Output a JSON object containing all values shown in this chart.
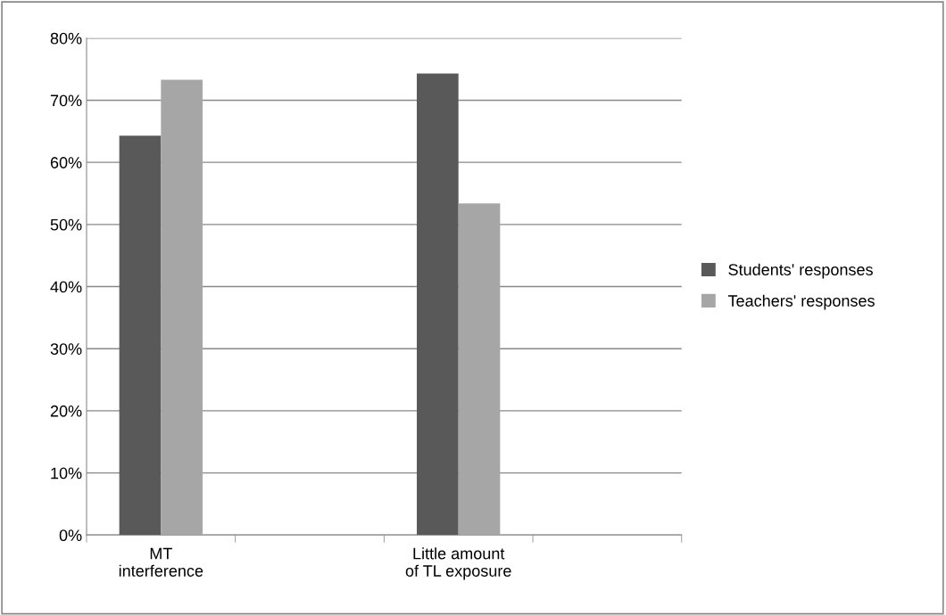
{
  "chart_data": {
    "type": "bar",
    "categories": [
      "MT\ninterference",
      null,
      "Little amount\nof TL exposure",
      null
    ],
    "series": [
      {
        "name": "Students' responses",
        "color": "#595959",
        "values": [
          64.3,
          null,
          74.3,
          null
        ]
      },
      {
        "name": "Teachers' responses",
        "color": "#a6a6a6",
        "values": [
          73.3,
          null,
          53.4,
          null
        ]
      }
    ],
    "ylim": [
      0,
      80
    ],
    "yticks": [
      {
        "value": 0,
        "label": "0%"
      },
      {
        "value": 10,
        "label": "10%"
      },
      {
        "value": 20,
        "label": "20%"
      },
      {
        "value": 30,
        "label": "30%"
      },
      {
        "value": 40,
        "label": "40%"
      },
      {
        "value": 50,
        "label": "50%"
      },
      {
        "value": 60,
        "label": "60%"
      },
      {
        "value": 70,
        "label": "70%"
      },
      {
        "value": 80,
        "label": "80%"
      }
    ],
    "grid": "y",
    "legend": "right"
  }
}
